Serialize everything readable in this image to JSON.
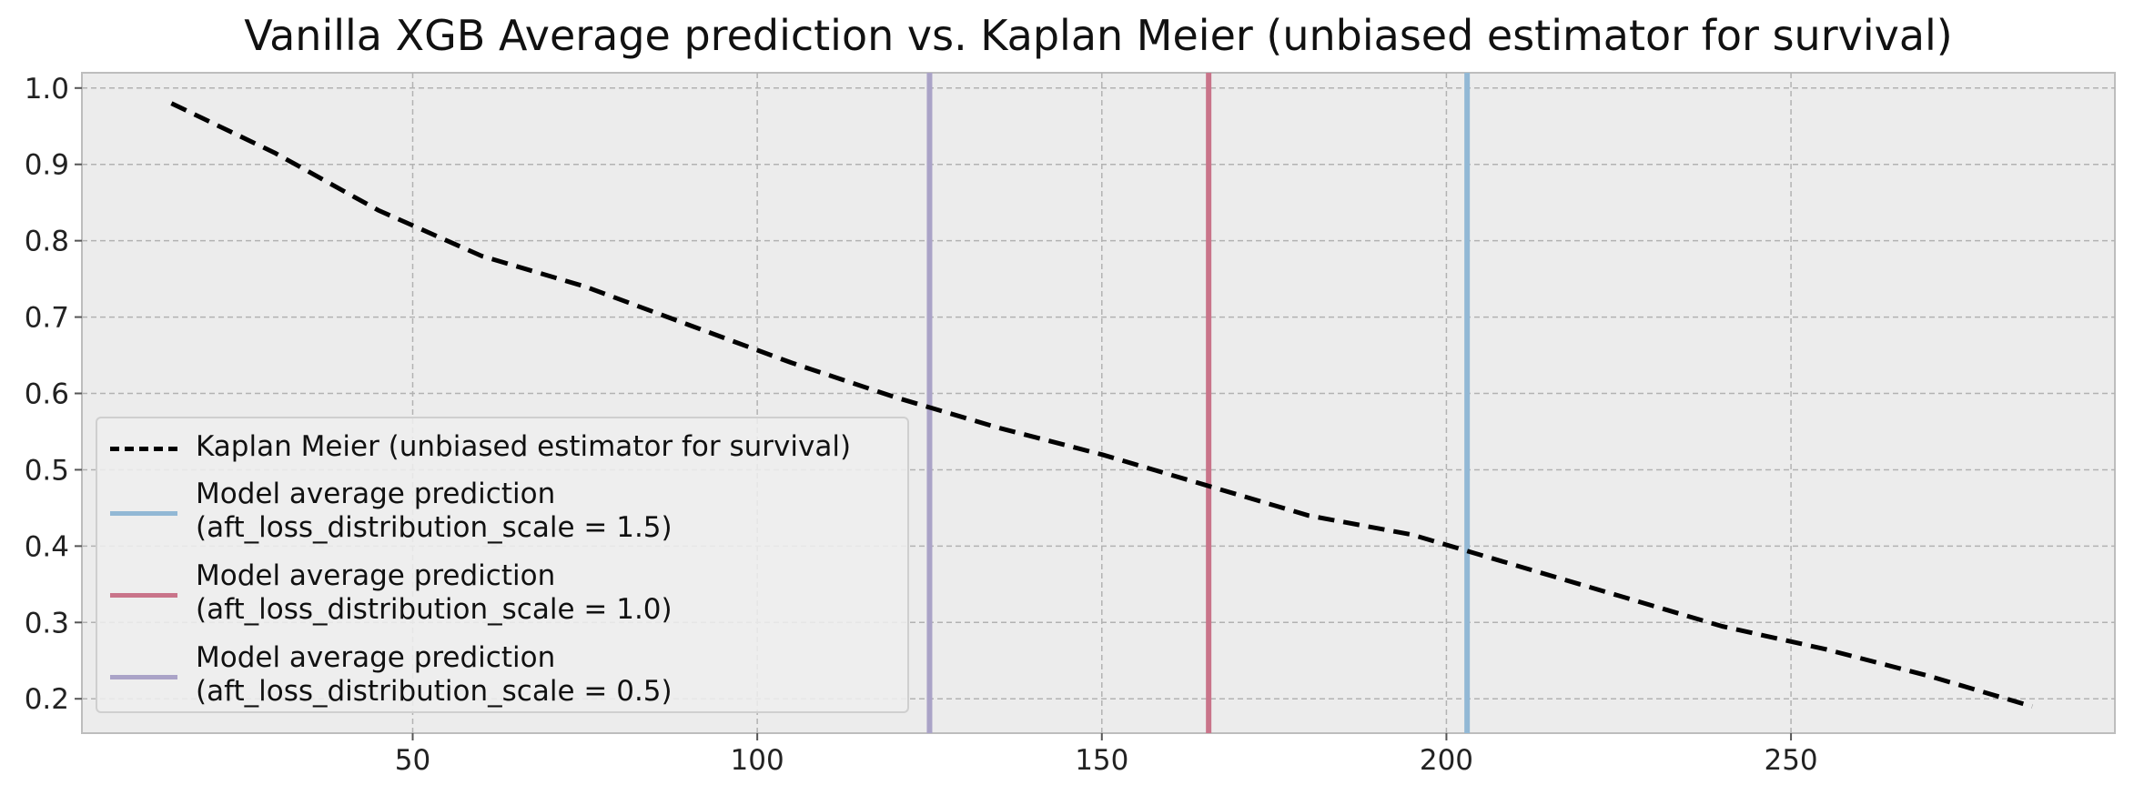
{
  "chart_data": {
    "type": "line",
    "title": "Vanilla XGB Average prediction vs. Kaplan Meier (unbiased estimator for survival)",
    "xlabel": "",
    "ylabel": "",
    "xlim": [
      2,
      297
    ],
    "ylim": [
      0.155,
      1.02
    ],
    "x_ticks": [
      50,
      100,
      150,
      200,
      250
    ],
    "y_ticks": [
      0.2,
      0.3,
      0.4,
      0.5,
      0.6,
      0.7,
      0.8,
      0.9,
      1.0
    ],
    "x_tick_labels": [
      "50",
      "100",
      "150",
      "200",
      "250"
    ],
    "y_tick_labels": [
      "0.2",
      "0.3",
      "0.4",
      "0.5",
      "0.6",
      "0.7",
      "0.8",
      "0.9",
      "1.0"
    ],
    "grid": true,
    "legend_position": "lower-left",
    "series": [
      {
        "name": "Kaplan Meier (unbiased estimator for survival)",
        "kind": "line",
        "style": "dashed",
        "color": "#000000",
        "x": [
          15,
          30,
          45,
          60,
          75,
          90,
          105,
          120,
          135,
          150,
          165,
          180,
          195,
          210,
          225,
          240,
          255,
          270,
          285
        ],
        "y": [
          0.98,
          0.915,
          0.84,
          0.78,
          0.74,
          0.69,
          0.64,
          0.595,
          0.555,
          0.52,
          0.48,
          0.44,
          0.415,
          0.375,
          0.335,
          0.295,
          0.265,
          0.23,
          0.19
        ]
      },
      {
        "name": "Model average prediction\n(aft_loss_distribution_scale = 1.5)",
        "kind": "vline",
        "color": "#92b8d5",
        "x": 203
      },
      {
        "name": "Model average prediction\n(aft_loss_distribution_scale = 1.0)",
        "kind": "vline",
        "color": "#c9748a",
        "x": 165.5
      },
      {
        "name": "Model average prediction\n(aft_loss_distribution_scale = 0.5)",
        "kind": "vline",
        "color": "#aaa3c7",
        "x": 125
      }
    ]
  }
}
